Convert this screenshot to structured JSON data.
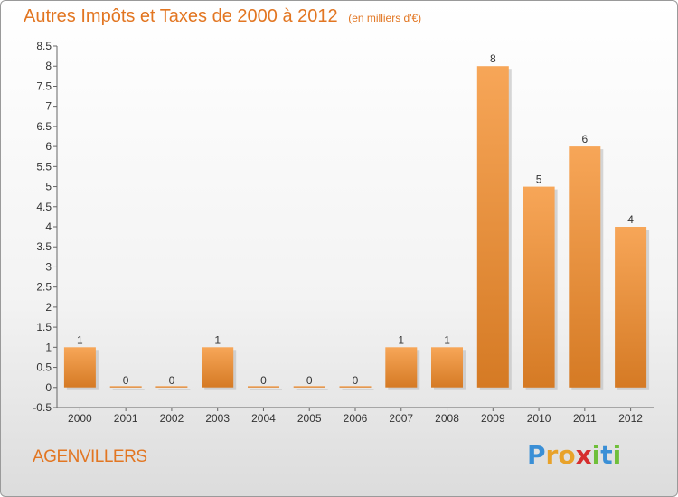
{
  "header": {
    "title": "Autres Impôts et Taxes de 2000 à 2012",
    "subtitle": "(en milliers d'€)"
  },
  "footer": {
    "commune": "AGENVILLERS",
    "logo_letters": [
      {
        "char": "P",
        "color": "#3a8fd6"
      },
      {
        "char": "r",
        "color": "#e8a22a"
      },
      {
        "char": "o",
        "color": "#e8a22a"
      },
      {
        "char": "x",
        "color": "#d62e2e"
      },
      {
        "char": "i",
        "color": "#6fbf3a"
      },
      {
        "char": "t",
        "color": "#3a8fd6"
      },
      {
        "char": "i",
        "color": "#6fbf3a"
      }
    ]
  },
  "colors": {
    "title": "#e27622",
    "bar_light": "#f7a658",
    "bar_dark": "#d57a24"
  },
  "chart_data": {
    "type": "bar",
    "categories": [
      "2000",
      "2001",
      "2002",
      "2003",
      "2004",
      "2005",
      "2006",
      "2007",
      "2008",
      "2009",
      "2010",
      "2011",
      "2012"
    ],
    "values": [
      1,
      0,
      0,
      1,
      0,
      0,
      0,
      1,
      1,
      8,
      5,
      6,
      4
    ],
    "data_labels": [
      "1",
      "0",
      "0",
      "1",
      "0",
      "0",
      "0",
      "1",
      "1",
      "8",
      "5",
      "6",
      "4"
    ],
    "ylim": [
      -0.5,
      8.5
    ],
    "yticks": [
      "8.5",
      "8",
      "7.5",
      "7",
      "6.5",
      "6",
      "5.5",
      "5",
      "4.5",
      "4",
      "3.5",
      "3",
      "2.5",
      "2",
      "1.5",
      "1",
      "0.5",
      "0",
      "-0.5"
    ],
    "grid": false
  }
}
